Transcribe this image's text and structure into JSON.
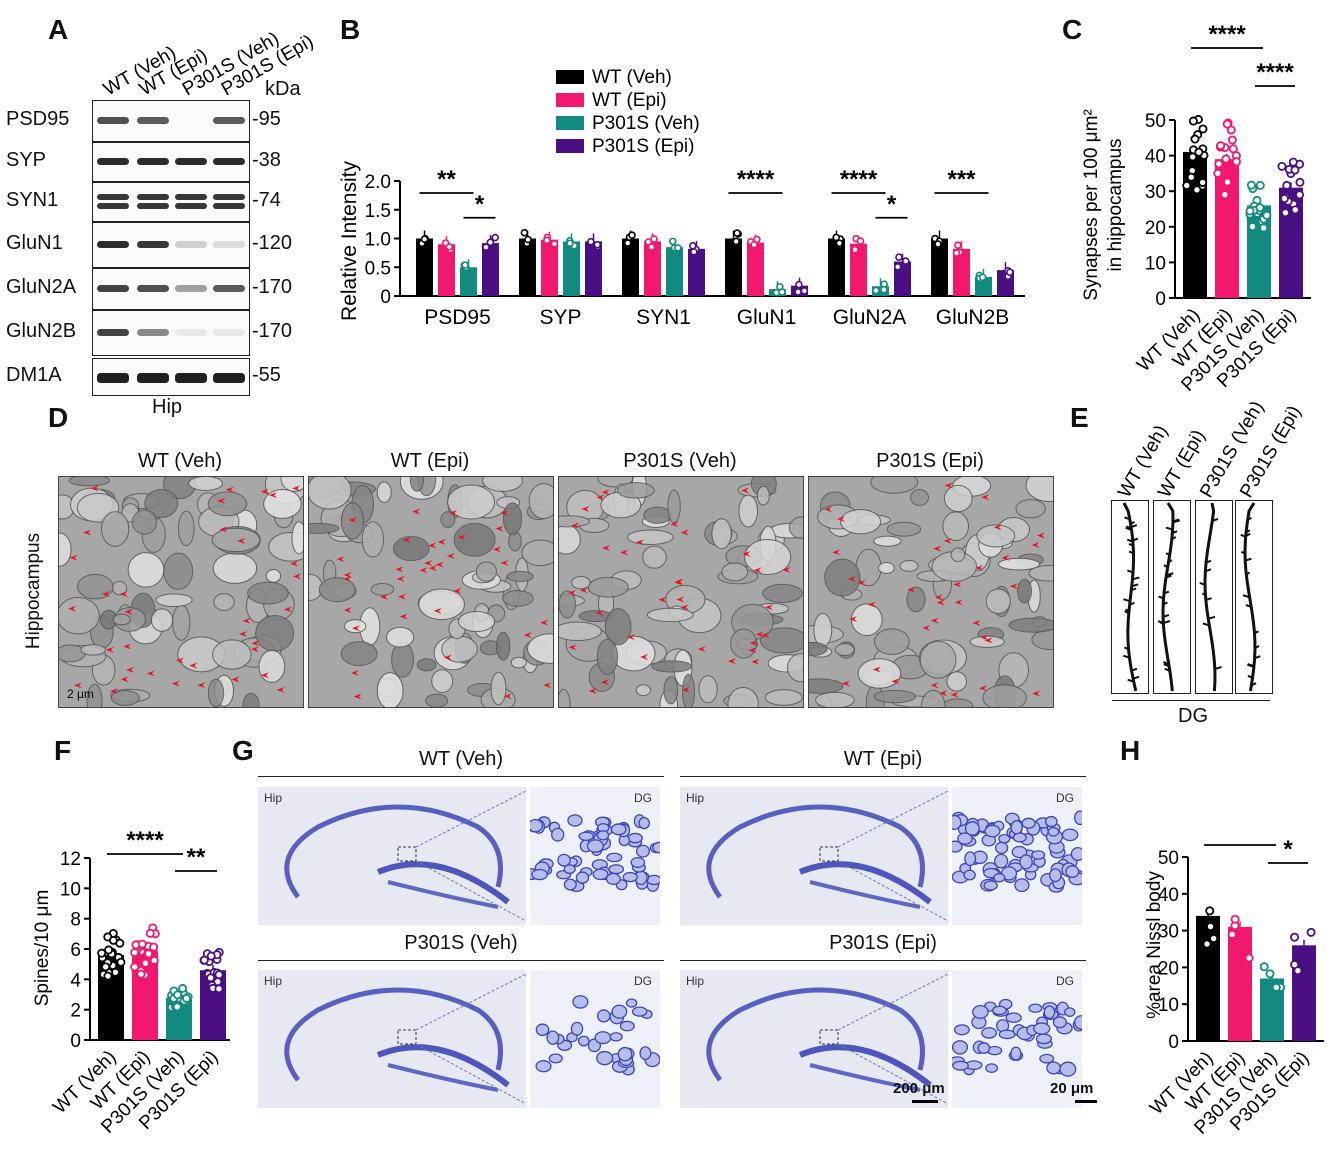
{
  "colors": {
    "wt_veh": "#000000",
    "wt_epi": "#f0196e",
    "p301s_veh": "#138a80",
    "p301s_epi": "#4a0f82",
    "arrow": "#e8141e",
    "nissl": "#3d46b8"
  },
  "groups": [
    "WT (Veh)",
    "WT (Epi)",
    "P301S (Veh)",
    "P301S (Epi)"
  ],
  "panels": {
    "A": "A",
    "B": "B",
    "C": "C",
    "D": "D",
    "E": "E",
    "F": "F",
    "G": "G",
    "H": "H"
  },
  "panel_a": {
    "rows": [
      {
        "label": "PSD95",
        "kda": "-95"
      },
      {
        "label": "SYP",
        "kda": "-38"
      },
      {
        "label": "SYN1",
        "kda": "-74"
      },
      {
        "label": "GluN1",
        "kda": "-120"
      },
      {
        "label": "GluN2A",
        "kda": "-170"
      },
      {
        "label": "GluN2B",
        "kda": "-170"
      },
      {
        "label": "DM1A",
        "kda": "-55"
      }
    ],
    "kda_label": "kDa",
    "region": "Hip",
    "band_intensity": [
      [
        0.75,
        0.7,
        0.0,
        0.7
      ],
      [
        0.9,
        0.9,
        0.9,
        0.9
      ],
      [
        0.85,
        0.85,
        0.85,
        0.85
      ],
      [
        0.9,
        0.85,
        0.2,
        0.15
      ],
      [
        0.8,
        0.75,
        0.4,
        0.7
      ],
      [
        0.8,
        0.5,
        0.1,
        0.1
      ],
      [
        0.95,
        0.95,
        0.95,
        0.95
      ]
    ]
  },
  "panel_d": {
    "side_label": "Hippocampus",
    "scale": "2 μm"
  },
  "panel_e": {
    "region": "DG"
  },
  "panel_g": {
    "titles": [
      "WT (Veh)",
      "WT (Epi)",
      "P301S (Veh)",
      "P301S (Epi)"
    ],
    "hip": "Hip",
    "dg": "DG",
    "scale_left": "200 μm",
    "scale_right": "20 μm"
  },
  "chart_data": [
    {
      "panel": "B",
      "type": "bar",
      "categories": [
        "PSD95",
        "SYP",
        "SYN1",
        "GluN1",
        "GluN2A",
        "GluN2B"
      ],
      "series": [
        {
          "name": "WT (Veh)",
          "values": [
            1.0,
            1.0,
            1.0,
            1.0,
            1.0,
            1.0
          ]
        },
        {
          "name": "WT (Epi)",
          "values": [
            0.9,
            0.98,
            0.95,
            0.93,
            0.91,
            0.82
          ]
        },
        {
          "name": "P301S (Veh)",
          "values": [
            0.5,
            0.95,
            0.85,
            0.12,
            0.17,
            0.33
          ]
        },
        {
          "name": "P301S (Epi)",
          "values": [
            0.92,
            0.95,
            0.82,
            0.18,
            0.6,
            0.45
          ]
        }
      ],
      "ylabel": "Relative Intensity",
      "ylim": [
        0,
        2.0
      ],
      "yticks": [
        "0",
        "0.5",
        "1.0",
        "1.5",
        "2.0"
      ],
      "legend_position": "top",
      "significance": [
        {
          "category": "PSD95",
          "from": 0,
          "to": 2,
          "label": "**"
        },
        {
          "category": "PSD95",
          "from": 2,
          "to": 3,
          "label": "*"
        },
        {
          "category": "GluN1",
          "from": 0,
          "to": 2,
          "label": "****"
        },
        {
          "category": "GluN2A",
          "from": 0,
          "to": 2,
          "label": "****"
        },
        {
          "category": "GluN2A",
          "from": 2,
          "to": 3,
          "label": "*"
        },
        {
          "category": "GluN2B",
          "from": 0,
          "to": 2,
          "label": "***"
        }
      ]
    },
    {
      "panel": "C",
      "type": "bar",
      "categories": [
        "WT (Veh)",
        "WT (Epi)",
        "P301S (Veh)",
        "P301S (Epi)"
      ],
      "values": [
        41,
        39,
        26,
        31
      ],
      "ylabel": "Synapses per 100 μm² in hippocampus",
      "ylabel_lines": [
        "Synapses per 100 μm²",
        "in hippocampus"
      ],
      "ylim": [
        0,
        50
      ],
      "yticks": [
        "0",
        "10",
        "20",
        "30",
        "40",
        "50"
      ],
      "significance": [
        {
          "from": 0,
          "to": 2,
          "label": "****"
        },
        {
          "from": 2,
          "to": 3,
          "label": "****"
        }
      ]
    },
    {
      "panel": "F",
      "type": "bar",
      "categories": [
        "WT (Veh)",
        "WT (Epi)",
        "P301S (Veh)",
        "P301S (Epi)"
      ],
      "values": [
        5.6,
        5.9,
        2.8,
        4.6
      ],
      "ylabel": "Spines/10 μm",
      "ylim": [
        0,
        12
      ],
      "yticks": [
        "0",
        "2",
        "4",
        "6",
        "8",
        "10",
        "12"
      ],
      "significance": [
        {
          "from": 0,
          "to": 2,
          "label": "****"
        },
        {
          "from": 2,
          "to": 3,
          "label": "**"
        }
      ]
    },
    {
      "panel": "H",
      "type": "bar",
      "categories": [
        "WT (Veh)",
        "WT (Epi)",
        "P301S (Veh)",
        "P301S (Epi)"
      ],
      "values": [
        34,
        31,
        17,
        26
      ],
      "ylabel": "%area Nissl body",
      "ylim": [
        0,
        50
      ],
      "yticks": [
        "0",
        "10",
        "20",
        "30",
        "40",
        "50"
      ],
      "significance": [
        {
          "from": 0,
          "to": 2,
          "label": "***"
        },
        {
          "from": 2,
          "to": 3,
          "label": "*"
        }
      ]
    }
  ]
}
